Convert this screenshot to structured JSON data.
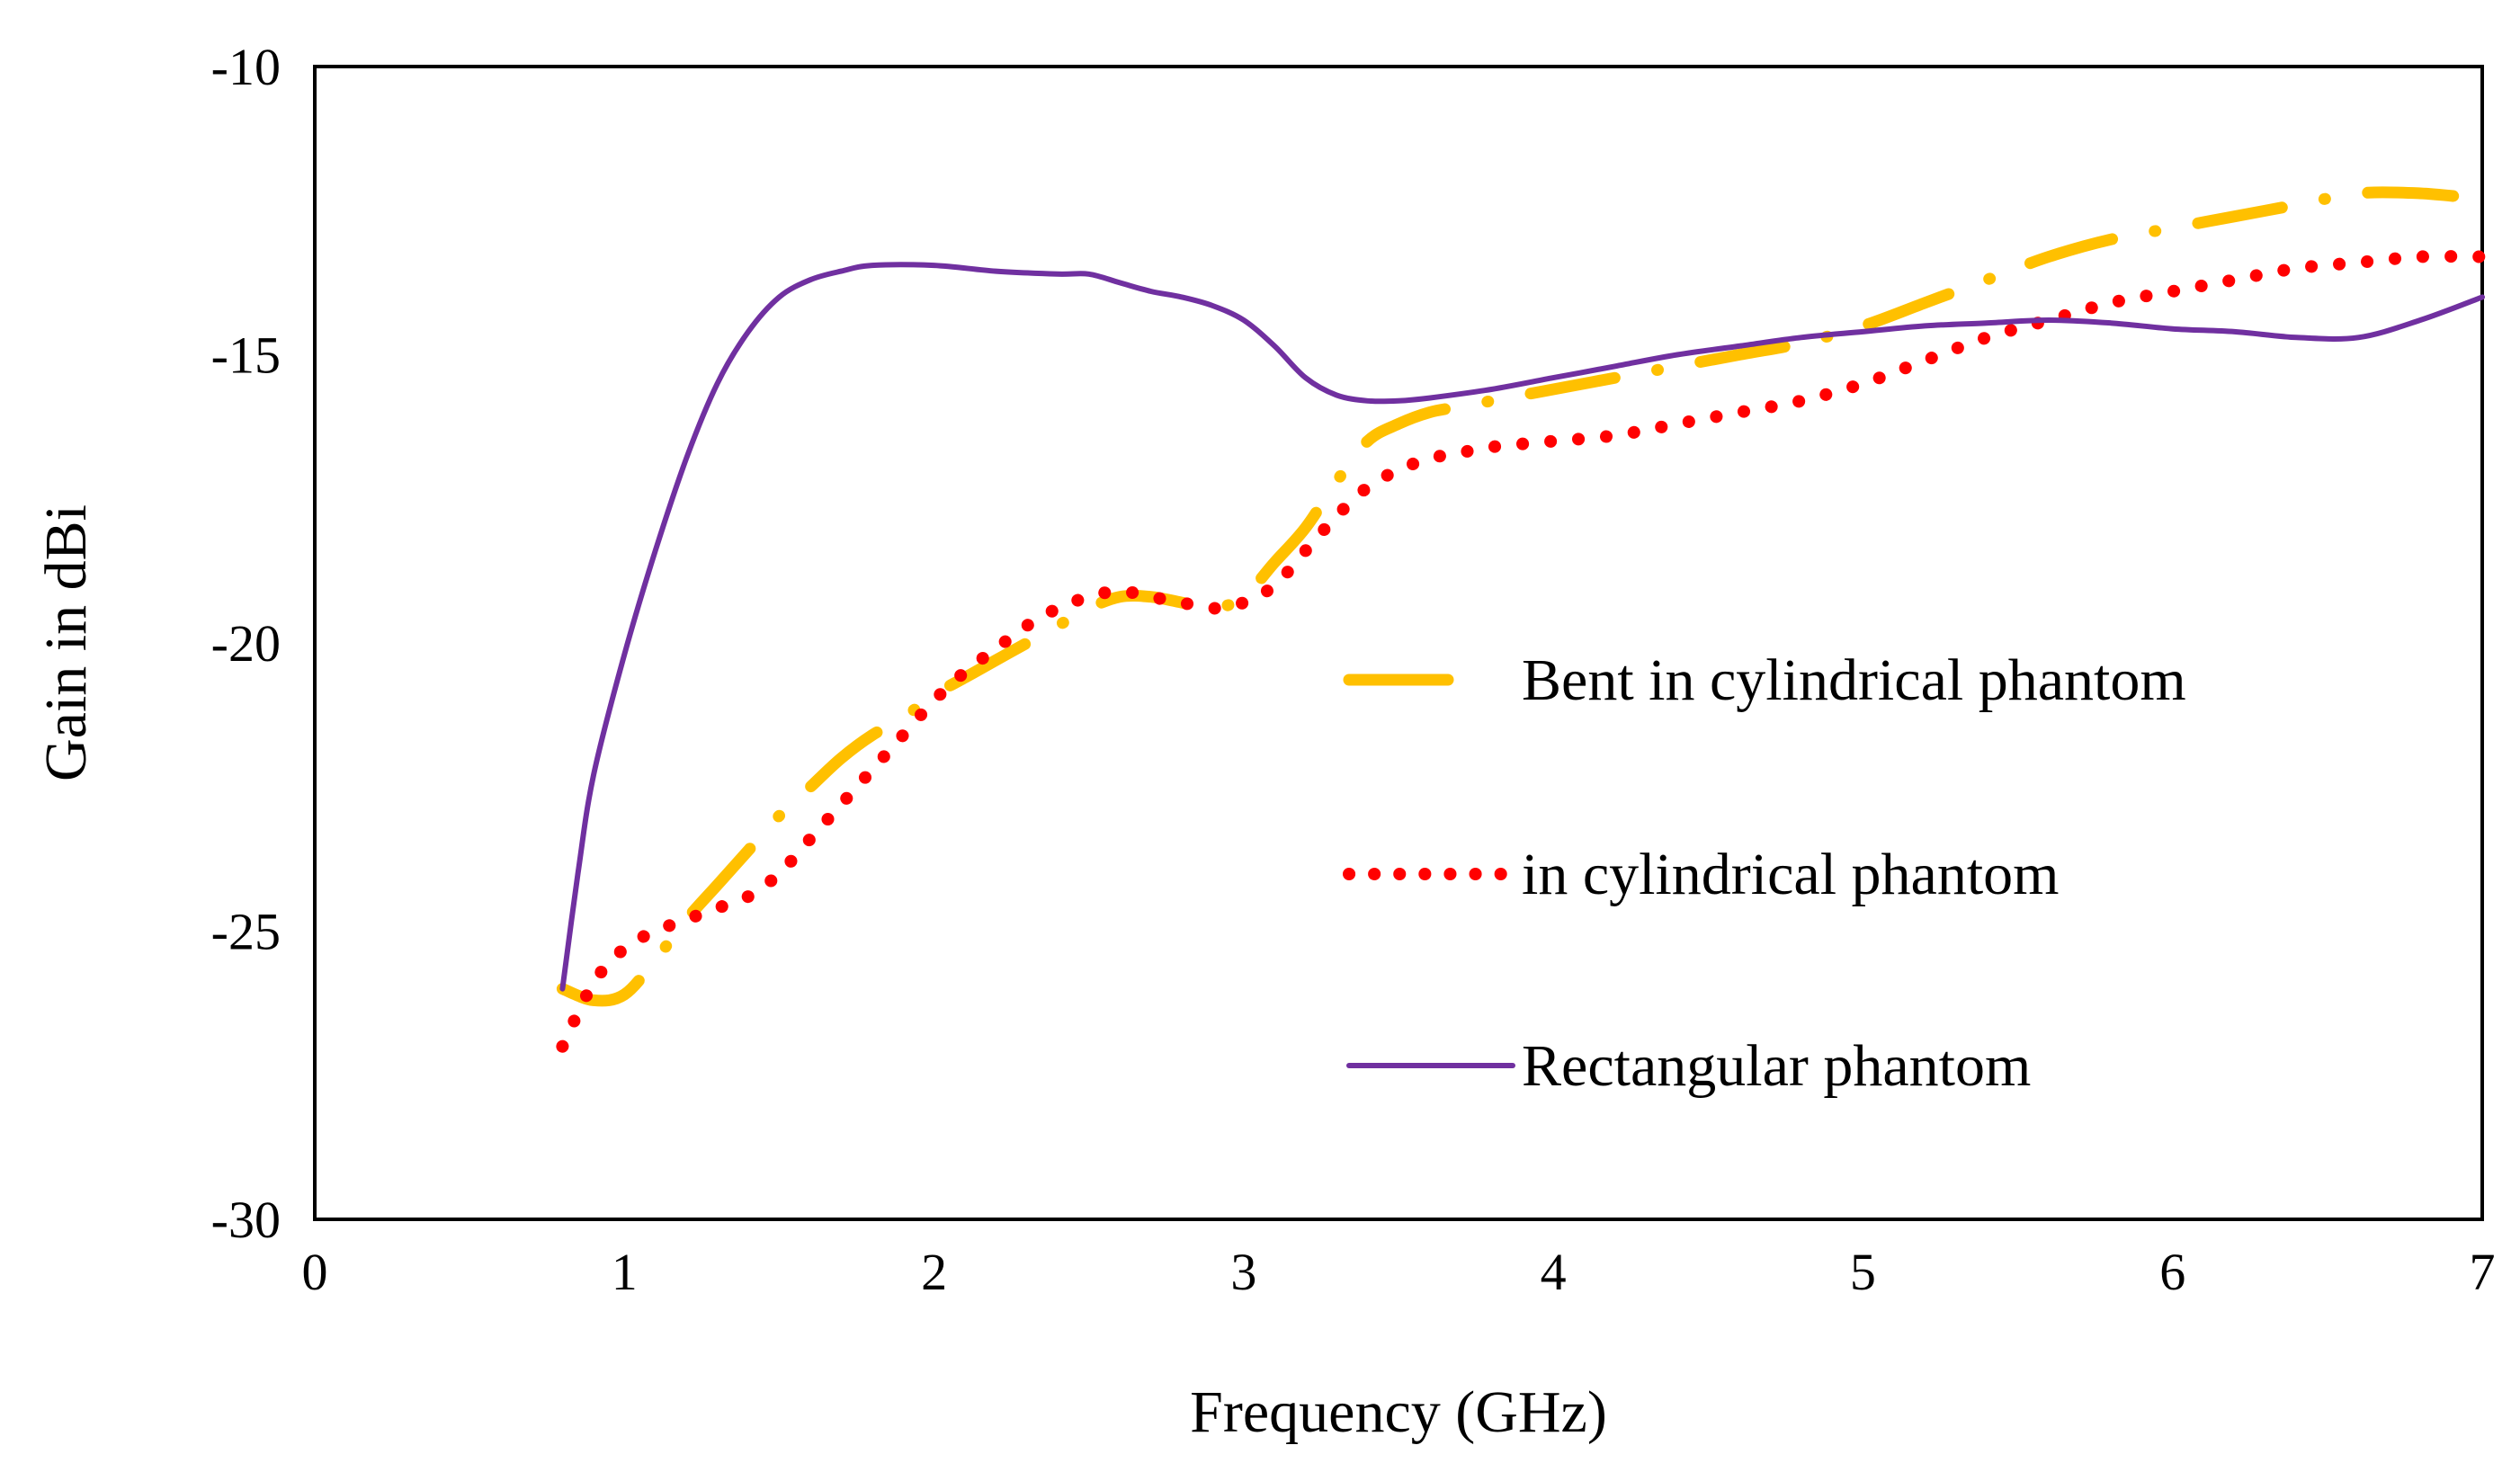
{
  "chart_data": {
    "type": "line",
    "title": "",
    "xlabel": "Frequency (GHz)",
    "ylabel": "Gain in dBi",
    "xlim": [
      0,
      7
    ],
    "ylim": [
      -30,
      -10
    ],
    "xticks": [
      "0",
      "1",
      "2",
      "3",
      "4",
      "5",
      "6",
      "7"
    ],
    "yticks": [
      "-10",
      "-15",
      "-20",
      "-25",
      "-30"
    ],
    "grid": false,
    "legend_position": "right",
    "series": [
      {
        "name": "Bent in cylindrical phantom",
        "color": "#FFC000",
        "style": "dash-dot",
        "x": [
          0.8,
          0.9,
          1.0,
          1.1,
          1.2,
          1.3,
          1.4,
          1.5,
          1.6,
          1.7,
          1.8,
          1.9,
          2.0,
          2.1,
          2.2,
          2.3,
          2.4,
          2.5,
          2.6,
          2.7,
          2.8,
          2.9,
          3.0,
          3.1,
          3.2,
          3.3,
          3.4,
          3.5,
          3.6,
          3.7,
          3.8,
          3.9,
          4.0,
          4.2,
          4.4,
          4.6,
          4.8,
          5.0,
          5.2,
          5.4,
          5.6,
          5.8,
          6.0,
          6.2,
          6.4,
          6.6,
          6.8,
          7.0
        ],
        "y": [
          -26.0,
          -26.2,
          -26.1,
          -25.5,
          -24.8,
          -24.2,
          -23.6,
          -23.0,
          -22.5,
          -22.0,
          -21.6,
          -21.3,
          -20.9,
          -20.6,
          -20.3,
          -20.0,
          -19.7,
          -19.4,
          -19.2,
          -19.2,
          -19.3,
          -19.4,
          -19.2,
          -18.6,
          -18.0,
          -17.2,
          -16.5,
          -16.2,
          -16.0,
          -15.9,
          -15.8,
          -15.7,
          -15.6,
          -15.4,
          -15.2,
          -15.0,
          -14.8,
          -14.5,
          -14.1,
          -13.7,
          -13.3,
          -13.0,
          -12.8,
          -12.6,
          -12.4,
          -12.2,
          -12.2,
          -12.3
        ]
      },
      {
        "name": "in cylindrical phantom",
        "color": "#FF0000",
        "style": "dotted",
        "x": [
          0.8,
          0.9,
          1.0,
          1.1,
          1.2,
          1.3,
          1.4,
          1.5,
          1.6,
          1.7,
          1.8,
          1.9,
          2.0,
          2.1,
          2.2,
          2.3,
          2.4,
          2.5,
          2.6,
          2.7,
          2.8,
          2.9,
          3.0,
          3.1,
          3.2,
          3.3,
          3.4,
          3.5,
          3.6,
          3.7,
          3.8,
          4.0,
          4.2,
          4.4,
          4.6,
          4.8,
          5.0,
          5.2,
          5.4,
          5.6,
          5.8,
          6.0,
          6.2,
          6.4,
          6.6,
          6.8,
          7.0
        ],
        "y": [
          -27.0,
          -25.9,
          -25.3,
          -25.0,
          -24.8,
          -24.6,
          -24.4,
          -24.0,
          -23.4,
          -22.8,
          -22.2,
          -21.6,
          -21.0,
          -20.5,
          -20.1,
          -19.7,
          -19.4,
          -19.2,
          -19.1,
          -19.2,
          -19.3,
          -19.4,
          -19.3,
          -19.0,
          -18.4,
          -17.8,
          -17.3,
          -17.0,
          -16.8,
          -16.7,
          -16.6,
          -16.5,
          -16.4,
          -16.2,
          -16.0,
          -15.8,
          -15.5,
          -15.1,
          -14.7,
          -14.4,
          -14.1,
          -13.9,
          -13.7,
          -13.5,
          -13.4,
          -13.3,
          -13.3
        ]
      },
      {
        "name": "Rectangular phantom",
        "color": "#7030A0",
        "style": "solid",
        "x": [
          0.8,
          0.85,
          0.9,
          1.0,
          1.1,
          1.2,
          1.3,
          1.4,
          1.5,
          1.6,
          1.7,
          1.8,
          2.0,
          2.2,
          2.4,
          2.5,
          2.6,
          2.7,
          2.8,
          2.9,
          3.0,
          3.1,
          3.2,
          3.3,
          3.4,
          3.5,
          3.6,
          3.8,
          4.0,
          4.2,
          4.4,
          4.6,
          4.8,
          5.0,
          5.2,
          5.4,
          5.6,
          5.8,
          6.0,
          6.2,
          6.4,
          6.6,
          6.8,
          7.0
        ],
        "y": [
          -26.0,
          -24.0,
          -22.3,
          -20.2,
          -18.4,
          -16.8,
          -15.5,
          -14.6,
          -14.0,
          -13.7,
          -13.55,
          -13.45,
          -13.45,
          -13.55,
          -13.6,
          -13.6,
          -13.75,
          -13.9,
          -14.0,
          -14.15,
          -14.4,
          -14.85,
          -15.4,
          -15.7,
          -15.8,
          -15.8,
          -15.75,
          -15.6,
          -15.4,
          -15.2,
          -15.0,
          -14.85,
          -14.7,
          -14.6,
          -14.5,
          -14.45,
          -14.4,
          -14.45,
          -14.55,
          -14.6,
          -14.7,
          -14.7,
          -14.4,
          -14.0
        ]
      }
    ]
  }
}
